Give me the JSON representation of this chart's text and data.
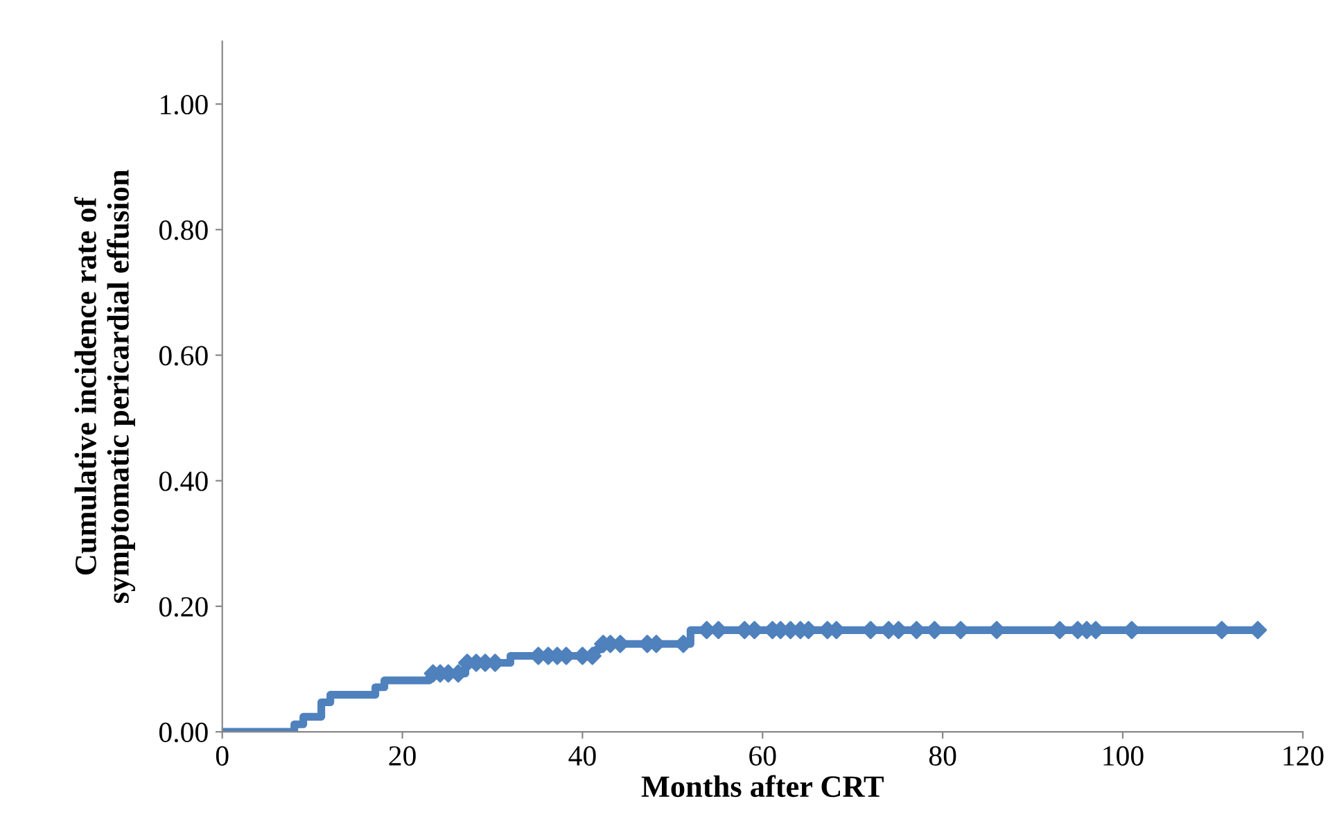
{
  "chart_data": {
    "type": "step",
    "xlabel": "Months after CRT",
    "ylabel": "Cumulative incidence rate of\nsymptomatic pericardial effusion",
    "xlim": [
      0,
      120
    ],
    "xticks": [
      0,
      20,
      40,
      60,
      80,
      100,
      120
    ],
    "ylim": [
      0,
      1.1
    ],
    "yticks": [
      {
        "value": 0,
        "label": "0.00"
      },
      {
        "value": 0.2,
        "label": "0.20"
      },
      {
        "value": 0.4,
        "label": "0.40"
      },
      {
        "value": 0.6,
        "label": "0.60"
      },
      {
        "value": 0.8,
        "label": "0.80"
      },
      {
        "value": 1.0,
        "label": "1.00"
      }
    ],
    "grid": false,
    "legend": false,
    "series": [
      {
        "color": "#4f81bd",
        "marker": "none",
        "x": [
          0,
          8,
          9,
          11,
          12,
          17,
          18,
          23,
          27,
          32,
          41.5,
          42,
          52,
          115
        ],
        "values": [
          0,
          0.012,
          0.024,
          0.047,
          0.059,
          0.071,
          0.082,
          0.093,
          0.11,
          0.121,
          0.131,
          0.14,
          0.162,
          0.162
        ]
      },
      {
        "type": "scatter",
        "color": "#4f81bd",
        "marker": "diamond",
        "x": [
          23.4,
          24.2,
          25.1,
          26.2,
          27.2,
          28.2,
          29.2,
          30.3,
          35.1,
          36.2,
          37.2,
          38.2,
          40,
          41.1,
          42.3,
          43.1,
          44.2,
          47.2,
          48.2,
          51.2,
          53.8,
          55.1,
          58,
          59.1,
          61.1,
          62,
          63.1,
          64.2,
          65.1,
          67.2,
          68.2,
          72,
          74,
          75.1,
          77.1,
          79.1,
          82,
          86,
          93,
          95,
          96,
          97,
          101,
          111,
          115
        ],
        "values": [
          0.093,
          0.093,
          0.093,
          0.093,
          0.11,
          0.11,
          0.11,
          0.11,
          0.121,
          0.121,
          0.121,
          0.121,
          0.121,
          0.121,
          0.14,
          0.14,
          0.14,
          0.14,
          0.14,
          0.14,
          0.162,
          0.162,
          0.162,
          0.162,
          0.162,
          0.162,
          0.162,
          0.162,
          0.162,
          0.162,
          0.162,
          0.162,
          0.162,
          0.162,
          0.162,
          0.162,
          0.162,
          0.162,
          0.162,
          0.162,
          0.162,
          0.162,
          0.162,
          0.162,
          0.162
        ]
      }
    ]
  }
}
